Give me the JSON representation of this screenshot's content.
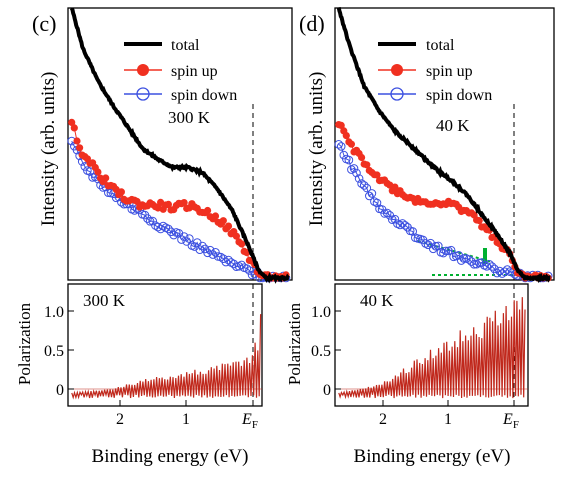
{
  "chart_data": [
    {
      "type": "line",
      "panel": "(c)",
      "ylabel": "Intensity (arb. units)",
      "temperature": "300 K",
      "xlim": [
        2.6,
        -0.4
      ],
      "x_reversed": true,
      "ylim": [
        0,
        1.0
      ],
      "y_ticks_labeled": false,
      "series": [
        {
          "name": "total",
          "color": "#000000",
          "marker": "none",
          "x": [
            2.55,
            2.4,
            2.2,
            2.0,
            1.8,
            1.6,
            1.4,
            1.2,
            1.0,
            0.8,
            0.6,
            0.4,
            0.2,
            0.05,
            -0.05,
            -0.2,
            -0.35
          ],
          "y": [
            1.0,
            0.85,
            0.73,
            0.64,
            0.56,
            0.48,
            0.44,
            0.41,
            0.41,
            0.39,
            0.33,
            0.25,
            0.13,
            0.03,
            0.0,
            0.0,
            0.0
          ]
        },
        {
          "name": "spin up",
          "color": "#f03020",
          "marker": "filled-circle",
          "x": [
            2.55,
            2.4,
            2.2,
            2.0,
            1.8,
            1.6,
            1.4,
            1.2,
            1.0,
            0.8,
            0.6,
            0.4,
            0.2,
            0.05,
            -0.05,
            -0.2,
            -0.35
          ],
          "y": [
            0.57,
            0.46,
            0.39,
            0.33,
            0.29,
            0.27,
            0.27,
            0.26,
            0.27,
            0.25,
            0.22,
            0.17,
            0.09,
            0.02,
            0.0,
            0.0,
            0.0
          ]
        },
        {
          "name": "spin down",
          "color": "#3c50e0",
          "marker": "open-circle",
          "x": [
            2.55,
            2.4,
            2.2,
            2.0,
            1.8,
            1.6,
            1.4,
            1.2,
            1.0,
            0.8,
            0.6,
            0.4,
            0.2,
            0.05,
            -0.05,
            -0.2,
            -0.35
          ],
          "y": [
            0.5,
            0.42,
            0.36,
            0.31,
            0.27,
            0.24,
            0.2,
            0.17,
            0.14,
            0.11,
            0.08,
            0.05,
            0.03,
            0.01,
            0.0,
            0.0,
            0.0
          ]
        }
      ]
    },
    {
      "type": "line",
      "panel": "(c)",
      "ylabel": "Polarization",
      "xlabel": "Binding energy (eV)",
      "temperature": "300 K",
      "xlim": [
        2.6,
        -0.4
      ],
      "x_reversed": true,
      "ylim": [
        -0.15,
        1.25
      ],
      "x_ticks": [
        2,
        1,
        0
      ],
      "x_tick_labels": [
        "2",
        "1",
        "E"
      ],
      "x_tick_label_subscript": "F",
      "y_ticks": [
        0,
        0.5,
        1.0
      ],
      "y_tick_labels": [
        "0",
        "0.5",
        "1.0"
      ],
      "series": [
        {
          "color": "#c0281c",
          "style": "oscillating-line",
          "x": [
            2.55,
            2.3,
            2.0,
            1.8,
            1.6,
            1.4,
            1.2,
            1.0,
            0.8,
            0.6,
            0.4,
            0.2,
            0.1,
            0.05
          ],
          "y": [
            0.0,
            0.02,
            0.05,
            0.1,
            0.15,
            0.18,
            0.22,
            0.25,
            0.28,
            0.32,
            0.36,
            0.45,
            0.65,
            1.1
          ]
        }
      ]
    },
    {
      "type": "line",
      "panel": "(d)",
      "ylabel": "Intensity (arb. units)",
      "temperature": "40 K",
      "xlim": [
        2.6,
        -0.4
      ],
      "x_reversed": true,
      "ylim": [
        0,
        1.0
      ],
      "y_ticks_labeled": false,
      "series": [
        {
          "name": "total",
          "color": "#000000",
          "marker": "none",
          "x": [
            2.55,
            2.4,
            2.2,
            2.0,
            1.8,
            1.6,
            1.4,
            1.2,
            1.0,
            0.8,
            0.6,
            0.4,
            0.2,
            0.1,
            0.0,
            -0.2,
            -0.35
          ],
          "y": [
            1.0,
            0.86,
            0.71,
            0.62,
            0.55,
            0.5,
            0.45,
            0.4,
            0.36,
            0.31,
            0.24,
            0.17,
            0.09,
            0.03,
            0.0,
            0.0,
            0.0
          ]
        },
        {
          "name": "spin up",
          "color": "#f03020",
          "marker": "filled-circle",
          "x": [
            2.55,
            2.4,
            2.2,
            2.0,
            1.8,
            1.6,
            1.4,
            1.2,
            1.0,
            0.8,
            0.6,
            0.4,
            0.2,
            0.1,
            0.0,
            -0.2,
            -0.35
          ],
          "y": [
            0.57,
            0.5,
            0.43,
            0.37,
            0.33,
            0.3,
            0.28,
            0.28,
            0.27,
            0.25,
            0.2,
            0.15,
            0.08,
            0.03,
            0.0,
            0.0,
            0.0
          ]
        },
        {
          "name": "spin down",
          "color": "#3c50e0",
          "marker": "open-circle",
          "x": [
            2.55,
            2.4,
            2.2,
            2.0,
            1.8,
            1.6,
            1.4,
            1.2,
            1.0,
            0.8,
            0.6,
            0.4,
            0.2,
            0.1,
            0.0,
            -0.2,
            -0.35
          ],
          "y": [
            0.5,
            0.42,
            0.34,
            0.27,
            0.22,
            0.18,
            0.14,
            0.11,
            0.09,
            0.07,
            0.05,
            0.03,
            0.02,
            0.01,
            0.0,
            0.0,
            0.0
          ]
        }
      ]
    },
    {
      "type": "line",
      "panel": "(d)",
      "ylabel": "Polarization",
      "xlabel": "Binding energy (eV)",
      "temperature": "40 K",
      "xlim": [
        2.6,
        -0.4
      ],
      "x_reversed": true,
      "ylim": [
        -0.15,
        1.25
      ],
      "x_ticks": [
        2,
        1,
        0
      ],
      "x_tick_labels": [
        "2",
        "1",
        "E"
      ],
      "x_tick_label_subscript": "F",
      "y_ticks": [
        0,
        0.5,
        1.0
      ],
      "y_tick_labels": [
        "0",
        "0.5",
        "1.0"
      ],
      "series": [
        {
          "color": "#c0281c",
          "style": "oscillating-line",
          "x": [
            2.55,
            2.3,
            2.0,
            1.8,
            1.6,
            1.4,
            1.2,
            1.0,
            0.8,
            0.6,
            0.4,
            0.2,
            0.1,
            0.05
          ],
          "y": [
            0.0,
            0.04,
            0.1,
            0.2,
            0.32,
            0.45,
            0.55,
            0.65,
            0.75,
            0.85,
            0.95,
            1.05,
            1.15,
            1.22
          ]
        }
      ]
    }
  ],
  "figure": {
    "panel_c": "(c)",
    "panel_d": "(d)",
    "legend": [
      "total",
      "spin up",
      "spin down"
    ],
    "temp_c": "300 K",
    "temp_d": "40 K",
    "ylabel_top": "Intensity (arb. units)",
    "ylabel_bottom": "Polarization",
    "xlabel": "Binding energy (eV)"
  }
}
